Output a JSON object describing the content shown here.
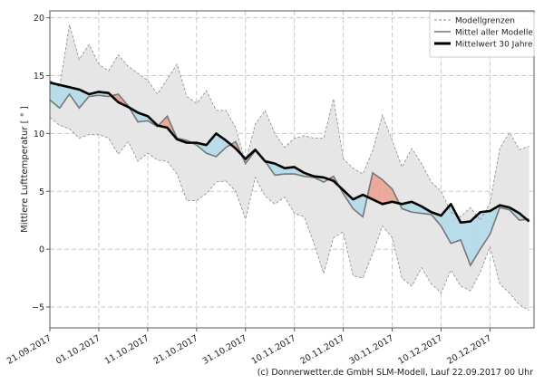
{
  "chart_data": {
    "type": "area",
    "title": "",
    "xlabel": "",
    "ylabel": "Mittlere Lufttemperatur [ ° ]",
    "xlim": [
      "21.09.2017",
      "29.12.2017"
    ],
    "ylim": [
      -6.8,
      20.6
    ],
    "grid": true,
    "legend_placement": "top-right",
    "yticks": [
      -5,
      0,
      5,
      10,
      15,
      20
    ],
    "ytick_labels": [
      "−5",
      "0",
      "5",
      "10",
      "15",
      "20"
    ],
    "xticks": [
      "21.09.2017",
      "01.10.2017",
      "11.10.2017",
      "21.10.2017",
      "31.10.2017",
      "10.11.2017",
      "20.11.2017",
      "30.11.2017",
      "10.12.2017",
      "20.12.2017"
    ],
    "x": [
      "21.09.2017",
      "23.09.2017",
      "25.09.2017",
      "27.09.2017",
      "29.09.2017",
      "01.10.2017",
      "03.10.2017",
      "05.10.2017",
      "07.10.2017",
      "09.10.2017",
      "11.10.2017",
      "13.10.2017",
      "15.10.2017",
      "17.10.2017",
      "19.10.2017",
      "21.10.2017",
      "23.10.2017",
      "25.10.2017",
      "27.10.2017",
      "29.10.2017",
      "31.10.2017",
      "02.11.2017",
      "04.11.2017",
      "06.11.2017",
      "08.11.2017",
      "10.11.2017",
      "12.11.2017",
      "14.11.2017",
      "16.11.2017",
      "18.11.2017",
      "20.11.2017",
      "22.11.2017",
      "24.11.2017",
      "26.11.2017",
      "28.11.2017",
      "30.11.2017",
      "02.12.2017",
      "04.12.2017",
      "06.12.2017",
      "08.12.2017",
      "10.12.2017",
      "12.12.2017",
      "14.12.2017",
      "16.12.2017",
      "18.12.2017",
      "20.12.2017",
      "22.12.2017",
      "24.12.2017",
      "26.12.2017",
      "28.12.2017"
    ],
    "series": [
      {
        "name": "Modellgrenzen",
        "role": "upper",
        "values": [
          14.6,
          14.0,
          19.4,
          16.4,
          17.7,
          16.0,
          15.4,
          16.8,
          15.8,
          15.2,
          14.6,
          13.4,
          14.7,
          16.0,
          13.2,
          12.6,
          13.7,
          12.0,
          12.0,
          10.5,
          7.5,
          10.8,
          12.0,
          10.0,
          8.8,
          9.6,
          9.8,
          9.6,
          9.6,
          13.0,
          7.8,
          7.0,
          6.5,
          8.5,
          11.6,
          9.4,
          7.1,
          8.7,
          7.4,
          5.8,
          5.0,
          3.2,
          2.8,
          3.6,
          2.5,
          4.0,
          8.7,
          10.1,
          8.6,
          8.9
        ]
      },
      {
        "name": "Modellgrenzen",
        "role": "lower",
        "values": [
          11.4,
          10.7,
          10.4,
          9.6,
          9.9,
          9.9,
          9.6,
          8.2,
          9.3,
          7.6,
          8.3,
          7.7,
          7.6,
          6.5,
          4.2,
          4.2,
          4.8,
          5.8,
          5.9,
          5.0,
          2.6,
          6.2,
          4.6,
          3.9,
          4.5,
          3.1,
          2.8,
          0.5,
          -2.1,
          1.0,
          1.5,
          -2.3,
          -2.5,
          -0.4,
          2.0,
          1.0,
          -2.5,
          -3.2,
          -1.6,
          -3.0,
          -3.8,
          -1.8,
          -3.2,
          -3.6,
          -2.0,
          0.2,
          -3.0,
          -3.8,
          -4.8,
          -5.3
        ]
      },
      {
        "name": "Mittel aller Modelle",
        "values": [
          12.9,
          12.2,
          13.4,
          12.2,
          13.2,
          13.3,
          13.2,
          13.4,
          12.4,
          11.0,
          11.1,
          10.6,
          11.5,
          9.6,
          9.4,
          9.0,
          8.3,
          8.0,
          8.8,
          9.3,
          7.4,
          8.5,
          7.6,
          6.4,
          6.5,
          6.5,
          6.3,
          6.2,
          5.8,
          6.3,
          4.8,
          3.5,
          2.8,
          6.6,
          6.0,
          5.2,
          3.5,
          3.2,
          3.1,
          3.0,
          2.0,
          0.5,
          0.8,
          -1.4,
          0.0,
          1.3,
          3.6,
          3.4,
          2.5,
          2.6
        ]
      },
      {
        "name": "Mittelwert 30 Jahre",
        "values": [
          14.4,
          14.2,
          14.0,
          13.8,
          13.4,
          13.6,
          13.5,
          12.7,
          12.3,
          11.8,
          11.5,
          10.7,
          10.5,
          9.5,
          9.2,
          9.2,
          9.0,
          10.0,
          9.4,
          8.7,
          7.8,
          8.6,
          7.6,
          7.4,
          7.0,
          7.1,
          6.6,
          6.3,
          6.2,
          5.9,
          5.1,
          4.3,
          4.7,
          4.3,
          3.9,
          4.1,
          3.9,
          4.1,
          3.7,
          3.2,
          2.9,
          3.9,
          2.3,
          2.4,
          3.2,
          3.3,
          3.8,
          3.6,
          3.1,
          2.4
        ]
      }
    ],
    "colors": {
      "range_fill": "#e6e6e6",
      "range_line": "#8a8a8a",
      "model_mean": "#777777",
      "climate_mean": "#000000",
      "warmer_fill": "#eaa99b",
      "colder_fill": "#b9dcea"
    },
    "legend": [
      "Modellgrenzen",
      "Mittel aller Modelle",
      "Mittelwert 30 Jahre"
    ]
  },
  "footer": {
    "credit": "(c) Donnerwetter.de GmbH SLM-Modell, Lauf 22.09.2017 00 Uhr"
  }
}
